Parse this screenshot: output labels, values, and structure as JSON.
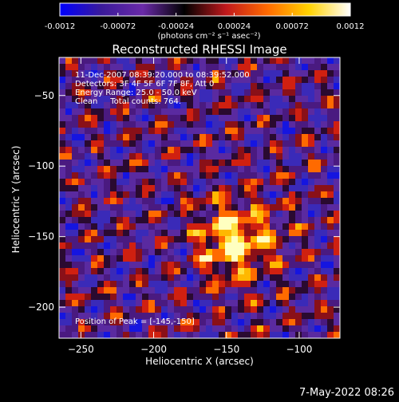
{
  "colorbar": {
    "tick_labels": [
      "-0.0012",
      "-0.00072",
      "-0.00024",
      "0.00024",
      "0.00072",
      "0.0012"
    ],
    "tick_values": [
      -0.0012,
      -0.00072,
      -0.00024,
      0.00024,
      0.00072,
      0.0012
    ],
    "range": [
      -0.0012,
      0.0012
    ],
    "units_label": "(photons cm⁻² s⁻¹ asec⁻²)",
    "colormap_stops": [
      "#0000ff",
      "#3a1a9a",
      "#6a2aa8",
      "#000000",
      "#c0181c",
      "#ff6a00",
      "#ffd200",
      "#ffffff"
    ]
  },
  "image": {
    "title": "Reconstructed RHESSI Image",
    "annotation_lines": [
      "11-Dec-2007 08:39:20.000 to 08:39:52.000",
      "Detectors: 3F 4F 5F 6F 7F 8F, Att 0",
      "Energy Range: 25.0 - 50.0 keV",
      "Clean     Total counts: 764."
    ],
    "peak_label": "Position of Peak = [-145,-150]",
    "peak_position": [
      -145,
      -150
    ]
  },
  "axes": {
    "xlabel": "Heliocentric X (arcsec)",
    "ylabel": "Heliocentric Y (arcsec)",
    "xlim": [
      -265,
      -72
    ],
    "ylim": [
      -222,
      -23
    ],
    "x_ticks": [
      -250,
      -200,
      -150,
      -100
    ],
    "x_tick_labels": [
      "−250",
      "−200",
      "−150",
      "−100"
    ],
    "y_ticks": [
      -50,
      -100,
      -150,
      -200
    ],
    "y_tick_labels": [
      "−50",
      "−100",
      "−150",
      "−200"
    ]
  },
  "footer": {
    "timestamp": "7-May-2022 08:26"
  }
}
